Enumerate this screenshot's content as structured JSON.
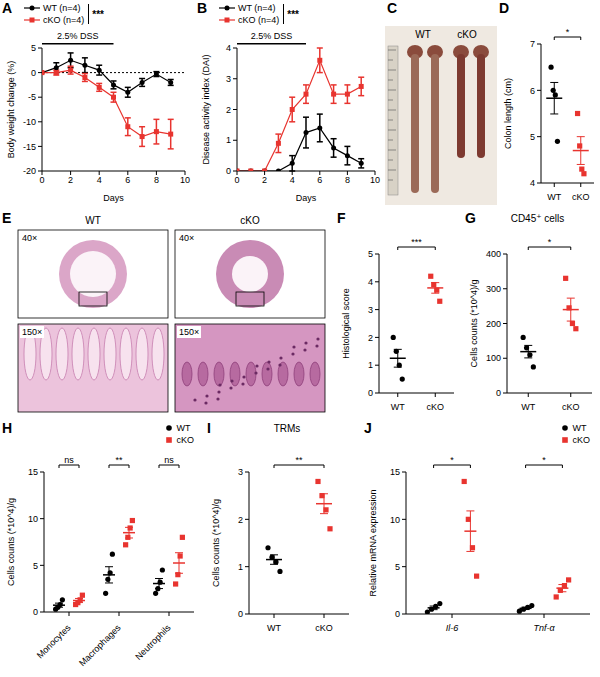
{
  "chart_data": [
    {
      "panel": "A",
      "type": "line",
      "x_label": "Days",
      "y_label": "Body weight change (%)",
      "x": [
        0,
        1,
        2,
        3,
        4,
        5,
        6,
        7,
        8,
        9
      ],
      "xlim": [
        0,
        10
      ],
      "xticks": [
        0,
        2,
        4,
        6,
        8,
        10
      ],
      "ylim": [
        -20,
        5
      ],
      "yticks": [
        -20,
        -15,
        -10,
        -5,
        0,
        5
      ],
      "baseline": 0,
      "annotation": "2.5% DSS",
      "annotation_range": [
        0,
        5
      ],
      "significance": "***",
      "legend": "top-left",
      "series": [
        {
          "name": "WT (n=4)",
          "color": "#000000",
          "marker": "circle",
          "values": [
            0,
            1,
            2.5,
            1.5,
            0.5,
            -2.5,
            -4,
            -2,
            -0.3,
            -2
          ],
          "error": [
            0,
            1,
            1.5,
            1.5,
            1,
            0.8,
            1,
            0.8,
            0.5,
            0.6
          ]
        },
        {
          "name": "cKO (n=4)",
          "color": "#e8342f",
          "marker": "square",
          "values": [
            0,
            0,
            0.5,
            -1,
            -3,
            -5,
            -11,
            -13,
            -12,
            -12.5
          ],
          "error": [
            0,
            0.5,
            0.8,
            0.8,
            0.8,
            1,
            1.8,
            2,
            2.5,
            3
          ]
        }
      ]
    },
    {
      "panel": "B",
      "type": "line",
      "x_label": "Days",
      "y_label": "Disease activity index (DAI)",
      "x": [
        0,
        1,
        2,
        3,
        4,
        5,
        6,
        7,
        8,
        9
      ],
      "xlim": [
        0,
        10
      ],
      "xticks": [
        0,
        2,
        4,
        6,
        8,
        10
      ],
      "ylim": [
        0,
        4
      ],
      "yticks": [
        0,
        1,
        2,
        3,
        4
      ],
      "annotation": "2.5% DSS",
      "annotation_range": [
        0,
        5
      ],
      "significance": "***",
      "legend": "top-left",
      "series": [
        {
          "name": "WT (n=4)",
          "color": "#000000",
          "marker": "circle",
          "values": [
            0,
            0,
            0,
            0,
            0.25,
            1.25,
            1.4,
            0.75,
            0.5,
            0.25
          ],
          "error": [
            0,
            0,
            0,
            0,
            0.25,
            0.5,
            0.45,
            0.3,
            0.3,
            0.15
          ]
        },
        {
          "name": "cKO (n=4)",
          "color": "#e8342f",
          "marker": "square",
          "values": [
            0,
            0,
            0,
            0.9,
            2,
            2.5,
            3.6,
            2.5,
            2.5,
            2.75
          ],
          "error": [
            0,
            0,
            0,
            0.3,
            0.4,
            0.3,
            0.4,
            0.3,
            0.3,
            0.3
          ]
        }
      ]
    },
    {
      "panel": "C",
      "type": "image",
      "labels": [
        "WT",
        "cKO"
      ]
    },
    {
      "panel": "D",
      "type": "scatter",
      "y_label": "Colon length (cm)",
      "ylim": [
        4,
        7
      ],
      "yticks": [
        4,
        5,
        6,
        7
      ],
      "significance": "*",
      "groups": [
        {
          "name": "WT",
          "color": "#000000",
          "marker": "circle",
          "values": [
            6.5,
            6.0,
            5.9,
            4.9
          ],
          "mean": 5.83,
          "error": 0.34
        },
        {
          "name": "cKO",
          "color": "#e8342f",
          "marker": "square",
          "values": [
            5.5,
            4.8,
            4.3,
            4.2
          ],
          "mean": 4.7,
          "error": 0.3
        }
      ]
    },
    {
      "panel": "E",
      "type": "image",
      "columns": [
        "WT",
        "cKO"
      ],
      "magnifications": [
        "40×",
        "150×"
      ]
    },
    {
      "panel": "F",
      "type": "scatter",
      "y_label": "Histological score",
      "ylim": [
        0,
        5
      ],
      "yticks": [
        0,
        1,
        2,
        3,
        4,
        5
      ],
      "significance": "***",
      "groups": [
        {
          "name": "WT",
          "color": "#000000",
          "marker": "circle",
          "values": [
            2.0,
            1.5,
            1.0,
            0.5
          ],
          "mean": 1.25,
          "error": 0.32
        },
        {
          "name": "cKO",
          "color": "#e8342f",
          "marker": "square",
          "values": [
            4.2,
            3.9,
            3.7,
            3.3
          ],
          "mean": 3.78,
          "error": 0.19
        }
      ]
    },
    {
      "panel": "G",
      "type": "scatter",
      "title": "CD45⁺ cells",
      "y_label": "Cells counts (*10^4)/g",
      "ylim": [
        0,
        400
      ],
      "yticks": [
        0,
        100,
        200,
        300,
        400
      ],
      "significance": "*",
      "groups": [
        {
          "name": "WT",
          "color": "#000000",
          "marker": "circle",
          "values": [
            160,
            130,
            110,
            75
          ],
          "mean": 119,
          "error": 18
        },
        {
          "name": "cKO",
          "color": "#e8342f",
          "marker": "square",
          "values": [
            330,
            245,
            200,
            185
          ],
          "mean": 240,
          "error": 33
        }
      ]
    },
    {
      "panel": "H",
      "type": "scatter",
      "y_label": "Cells counts (*10^4)/g",
      "categories": [
        "Monocytes",
        "Macrophages",
        "Neutrophils"
      ],
      "ylim": [
        0,
        15
      ],
      "yticks": [
        0,
        5,
        10,
        15
      ],
      "significance": [
        "ns",
        "**",
        "ns"
      ],
      "legend": "top-right",
      "series": [
        {
          "name": "WT",
          "color": "#000000",
          "marker": "circle",
          "values": [
            [
              0.3,
              0.5,
              0.8,
              1.3
            ],
            [
              2.0,
              3.5,
              4.2,
              6.2
            ],
            [
              2.0,
              2.5,
              3.2,
              4.5
            ]
          ],
          "mean": [
            0.73,
            3.98,
            3.05
          ],
          "error": [
            0.22,
            0.87,
            0.54
          ]
        },
        {
          "name": "cKO",
          "color": "#e8342f",
          "marker": "square",
          "values": [
            [
              0.8,
              1.0,
              1.3,
              1.8
            ],
            [
              7.2,
              8.0,
              9.0,
              9.8
            ],
            [
              3.0,
              4.0,
              6.0,
              8.0
            ]
          ],
          "mean": [
            1.23,
            8.5,
            5.25
          ],
          "error": [
            0.22,
            0.57,
            1.1
          ]
        }
      ]
    },
    {
      "panel": "I",
      "type": "scatter",
      "title": "TRMs",
      "y_label": "Cells counts (*10^4)/g",
      "ylim": [
        0,
        3
      ],
      "yticks": [
        0,
        1,
        2,
        3
      ],
      "significance": "**",
      "groups": [
        {
          "name": "WT",
          "color": "#000000",
          "marker": "circle",
          "values": [
            1.4,
            1.2,
            1.1,
            0.9
          ],
          "mean": 1.15,
          "error": 0.1
        },
        {
          "name": "cKO",
          "color": "#e8342f",
          "marker": "square",
          "values": [
            2.8,
            2.5,
            2.2,
            1.8
          ],
          "mean": 2.33,
          "error": 0.21
        }
      ]
    },
    {
      "panel": "J",
      "type": "scatter",
      "y_label": "Relative mRNA expression",
      "categories": [
        "Il-6",
        "Tnf-α"
      ],
      "ylim": [
        0,
        15
      ],
      "yticks": [
        0,
        5,
        10,
        15
      ],
      "significance": [
        "*",
        "*"
      ],
      "legend": "top-right",
      "series": [
        {
          "name": "WT",
          "color": "#000000",
          "marker": "circle",
          "values": [
            [
              0.2,
              0.5,
              0.8,
              1.1
            ],
            [
              0.3,
              0.5,
              0.7,
              0.9
            ]
          ],
          "mean": [
            0.65,
            0.6
          ],
          "error": [
            0.19,
            0.13
          ]
        },
        {
          "name": "cKO",
          "color": "#e8342f",
          "marker": "square",
          "values": [
            [
              14,
              10,
              7,
              4
            ],
            [
              1.8,
              2.5,
              3,
              3.6
            ]
          ],
          "mean": [
            8.75,
            2.73
          ],
          "error": [
            2.14,
            0.38
          ]
        }
      ]
    }
  ]
}
